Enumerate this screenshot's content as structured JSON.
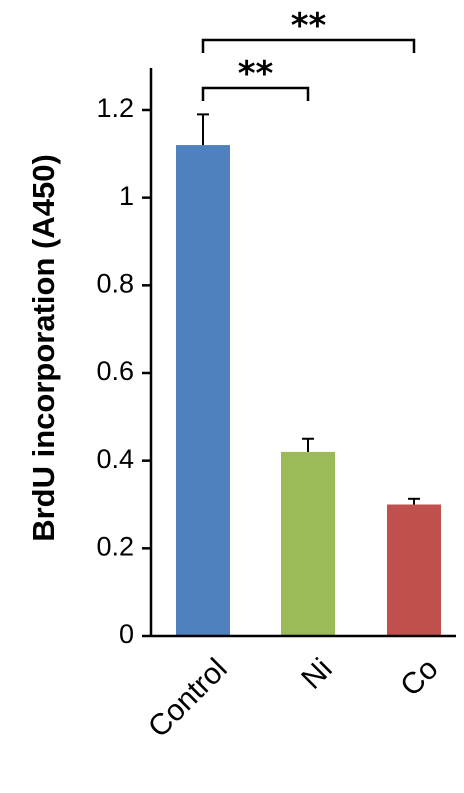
{
  "chart_data": {
    "type": "bar",
    "categories": [
      "Control",
      "Ni",
      "Co"
    ],
    "values": [
      1.12,
      0.42,
      0.3
    ],
    "errors": [
      0.07,
      0.03,
      0.013
    ],
    "colors": [
      "#4f81bd",
      "#9bbb59",
      "#c0504d"
    ],
    "ylabel": "BrdU incorporation (A450)",
    "ylim": [
      0,
      1.2
    ],
    "yticks": [
      "0",
      "0.2",
      "0.4",
      "0.6",
      "0.8",
      "1",
      "1.2"
    ],
    "grid": false,
    "significance": [
      {
        "from": "Control",
        "to": "Ni",
        "label": "**"
      },
      {
        "from": "Control",
        "to": "Co",
        "label": "**"
      }
    ]
  }
}
